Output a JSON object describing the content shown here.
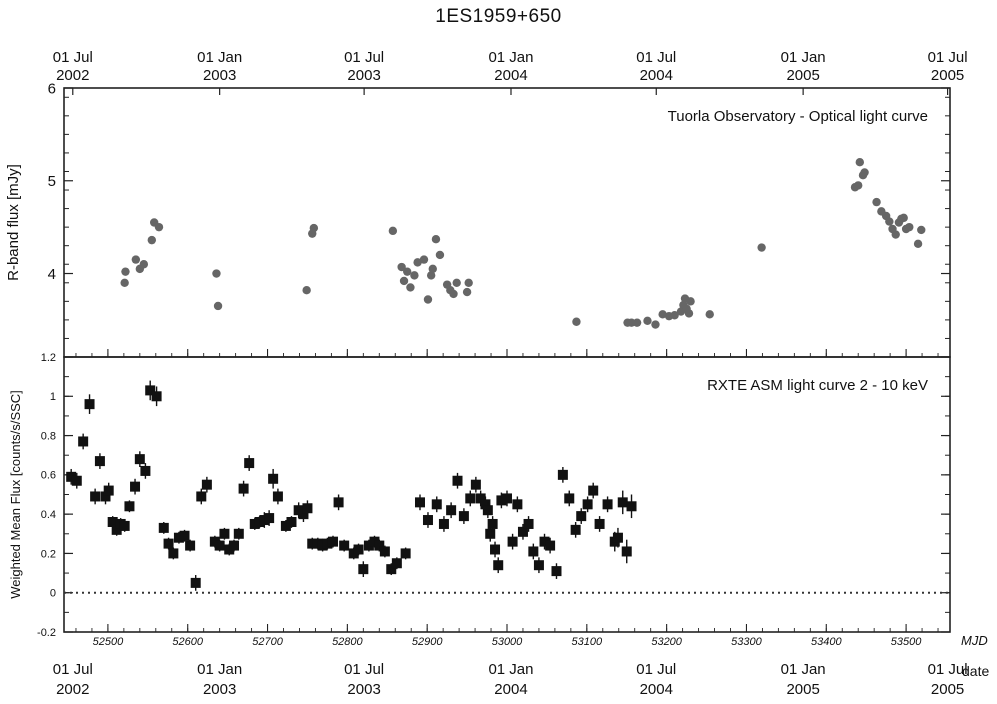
{
  "chart_data": {
    "title": "1ES1959+650",
    "type": "scatter",
    "date_ticks": [
      {
        "mjd": 52456,
        "month": "01 Jul",
        "year": "2002"
      },
      {
        "mjd": 52640,
        "month": "01 Jan",
        "year": "2003"
      },
      {
        "mjd": 52821,
        "month": "01 Jul",
        "year": "2003"
      },
      {
        "mjd": 53005,
        "month": "01 Jan",
        "year": "2004"
      },
      {
        "mjd": 53187,
        "month": "01 Jul",
        "year": "2004"
      },
      {
        "mjd": 53371,
        "month": "01 Jan",
        "year": "2005"
      },
      {
        "mjd": 53552,
        "month": "01 Jul",
        "year": "2005"
      }
    ],
    "bottom_axis": {
      "xlabel": "MJD",
      "date_label": "date",
      "ticks": [
        52500,
        52600,
        52700,
        52800,
        52900,
        53000,
        53100,
        53200,
        53300,
        53400,
        53500
      ]
    },
    "xlim": [
      52445,
      53555
    ],
    "panels": [
      {
        "id": "optical",
        "annotation": "Tuorla Observatory - Optical light curve",
        "ylabel": "R-band flux [mJy]",
        "ylim": [
          3.1,
          6.0
        ],
        "yticks": [
          "4",
          "5",
          "6"
        ],
        "yticks_val": [
          4,
          5,
          6
        ],
        "marker": "circle",
        "points": [
          {
            "x": 52521,
            "y": 3.9
          },
          {
            "x": 52522,
            "y": 4.02
          },
          {
            "x": 52535,
            "y": 4.15
          },
          {
            "x": 52540,
            "y": 4.05
          },
          {
            "x": 52545,
            "y": 4.1
          },
          {
            "x": 52555,
            "y": 4.36
          },
          {
            "x": 52558,
            "y": 4.55
          },
          {
            "x": 52564,
            "y": 4.5
          },
          {
            "x": 52636,
            "y": 4.0
          },
          {
            "x": 52638,
            "y": 3.65
          },
          {
            "x": 52749,
            "y": 3.82
          },
          {
            "x": 52756,
            "y": 4.43
          },
          {
            "x": 52758,
            "y": 4.49
          },
          {
            "x": 52857,
            "y": 4.46
          },
          {
            "x": 52868,
            "y": 4.07
          },
          {
            "x": 52871,
            "y": 3.92
          },
          {
            "x": 52875,
            "y": 4.02
          },
          {
            "x": 52879,
            "y": 3.85
          },
          {
            "x": 52884,
            "y": 3.98
          },
          {
            "x": 52888,
            "y": 4.12
          },
          {
            "x": 52896,
            "y": 4.15
          },
          {
            "x": 52901,
            "y": 3.72
          },
          {
            "x": 52905,
            "y": 3.98
          },
          {
            "x": 52907,
            "y": 4.05
          },
          {
            "x": 52911,
            "y": 4.37
          },
          {
            "x": 52916,
            "y": 4.2
          },
          {
            "x": 52925,
            "y": 3.88
          },
          {
            "x": 52929,
            "y": 3.82
          },
          {
            "x": 52933,
            "y": 3.78
          },
          {
            "x": 52937,
            "y": 3.9
          },
          {
            "x": 52950,
            "y": 3.8
          },
          {
            "x": 52952,
            "y": 3.9
          },
          {
            "x": 53087,
            "y": 3.48
          },
          {
            "x": 53151,
            "y": 3.47
          },
          {
            "x": 53156,
            "y": 3.47
          },
          {
            "x": 53163,
            "y": 3.47
          },
          {
            "x": 53176,
            "y": 3.49
          },
          {
            "x": 53186,
            "y": 3.45
          },
          {
            "x": 53195,
            "y": 3.56
          },
          {
            "x": 53203,
            "y": 3.54
          },
          {
            "x": 53210,
            "y": 3.55
          },
          {
            "x": 53218,
            "y": 3.59
          },
          {
            "x": 53221,
            "y": 3.66
          },
          {
            "x": 53223,
            "y": 3.73
          },
          {
            "x": 53225,
            "y": 3.62
          },
          {
            "x": 53228,
            "y": 3.57
          },
          {
            "x": 53230,
            "y": 3.7
          },
          {
            "x": 53254,
            "y": 3.56
          },
          {
            "x": 53319,
            "y": 4.28
          },
          {
            "x": 53436,
            "y": 4.93
          },
          {
            "x": 53440,
            "y": 4.95
          },
          {
            "x": 53442,
            "y": 5.2
          },
          {
            "x": 53446,
            "y": 5.06
          },
          {
            "x": 53448,
            "y": 5.09
          },
          {
            "x": 53463,
            "y": 4.77
          },
          {
            "x": 53469,
            "y": 4.67
          },
          {
            "x": 53475,
            "y": 4.62
          },
          {
            "x": 53479,
            "y": 4.56
          },
          {
            "x": 53483,
            "y": 4.48
          },
          {
            "x": 53487,
            "y": 4.42
          },
          {
            "x": 53491,
            "y": 4.55
          },
          {
            "x": 53494,
            "y": 4.59
          },
          {
            "x": 53497,
            "y": 4.6
          },
          {
            "x": 53500,
            "y": 4.48
          },
          {
            "x": 53504,
            "y": 4.5
          },
          {
            "x": 53515,
            "y": 4.32
          },
          {
            "x": 53519,
            "y": 4.47
          }
        ]
      },
      {
        "id": "xray",
        "annotation": "RXTE ASM light curve 2 - 10 keV",
        "ylabel": "Weighted Mean Flux [counts/s/SSC]",
        "ylim": [
          -0.2,
          1.2
        ],
        "yticks": [
          "-0.2",
          "0",
          "0.2",
          "0.4",
          "0.6",
          "0.8",
          "1",
          "1.2"
        ],
        "yticks_val": [
          -0.2,
          0,
          0.2,
          0.4,
          0.6,
          0.8,
          1,
          1.2
        ],
        "zero_line": true,
        "marker": "square",
        "points": [
          {
            "x": 52454,
            "y": 0.59,
            "err": 0.04
          },
          {
            "x": 52461,
            "y": 0.57,
            "err": 0.04
          },
          {
            "x": 52469,
            "y": 0.77,
            "err": 0.04
          },
          {
            "x": 52477,
            "y": 0.96,
            "err": 0.05
          },
          {
            "x": 52484,
            "y": 0.49,
            "err": 0.04
          },
          {
            "x": 52490,
            "y": 0.67,
            "err": 0.04
          },
          {
            "x": 52497,
            "y": 0.49,
            "err": 0.04
          },
          {
            "x": 52501,
            "y": 0.52,
            "err": 0.04
          },
          {
            "x": 52506,
            "y": 0.36,
            "err": 0.03
          },
          {
            "x": 52511,
            "y": 0.32,
            "err": 0.03
          },
          {
            "x": 52516,
            "y": 0.35,
            "err": 0.03
          },
          {
            "x": 52521,
            "y": 0.34,
            "err": 0.03
          },
          {
            "x": 52527,
            "y": 0.44,
            "err": 0.03
          },
          {
            "x": 52534,
            "y": 0.54,
            "err": 0.04
          },
          {
            "x": 52540,
            "y": 0.68,
            "err": 0.04
          },
          {
            "x": 52547,
            "y": 0.62,
            "err": 0.04
          },
          {
            "x": 52553,
            "y": 1.03,
            "err": 0.05
          },
          {
            "x": 52561,
            "y": 1.0,
            "err": 0.05
          },
          {
            "x": 52570,
            "y": 0.33,
            "err": 0.03
          },
          {
            "x": 52576,
            "y": 0.25,
            "err": 0.03
          },
          {
            "x": 52582,
            "y": 0.2,
            "err": 0.03
          },
          {
            "x": 52589,
            "y": 0.28,
            "err": 0.03
          },
          {
            "x": 52596,
            "y": 0.29,
            "err": 0.03
          },
          {
            "x": 52603,
            "y": 0.24,
            "err": 0.03
          },
          {
            "x": 52610,
            "y": 0.05,
            "err": 0.04
          },
          {
            "x": 52617,
            "y": 0.49,
            "err": 0.04
          },
          {
            "x": 52624,
            "y": 0.55,
            "err": 0.04
          },
          {
            "x": 52634,
            "y": 0.26,
            "err": 0.03
          },
          {
            "x": 52640,
            "y": 0.24,
            "err": 0.03
          },
          {
            "x": 52646,
            "y": 0.3,
            "err": 0.03
          },
          {
            "x": 52652,
            "y": 0.22,
            "err": 0.03
          },
          {
            "x": 52658,
            "y": 0.24,
            "err": 0.03
          },
          {
            "x": 52664,
            "y": 0.3,
            "err": 0.03
          },
          {
            "x": 52670,
            "y": 0.53,
            "err": 0.04
          },
          {
            "x": 52677,
            "y": 0.66,
            "err": 0.04
          },
          {
            "x": 52684,
            "y": 0.35,
            "err": 0.03
          },
          {
            "x": 52690,
            "y": 0.36,
            "err": 0.03
          },
          {
            "x": 52696,
            "y": 0.37,
            "err": 0.04
          },
          {
            "x": 52702,
            "y": 0.38,
            "err": 0.04
          },
          {
            "x": 52707,
            "y": 0.58,
            "err": 0.05
          },
          {
            "x": 52713,
            "y": 0.49,
            "err": 0.04
          },
          {
            "x": 52723,
            "y": 0.34,
            "err": 0.03
          },
          {
            "x": 52730,
            "y": 0.36,
            "err": 0.03
          },
          {
            "x": 52739,
            "y": 0.42,
            "err": 0.04
          },
          {
            "x": 52745,
            "y": 0.4,
            "err": 0.04
          },
          {
            "x": 52750,
            "y": 0.43,
            "err": 0.04
          },
          {
            "x": 52756,
            "y": 0.25,
            "err": 0.03
          },
          {
            "x": 52763,
            "y": 0.25,
            "err": 0.03
          },
          {
            "x": 52769,
            "y": 0.24,
            "err": 0.03
          },
          {
            "x": 52775,
            "y": 0.25,
            "err": 0.03
          },
          {
            "x": 52782,
            "y": 0.26,
            "err": 0.03
          },
          {
            "x": 52789,
            "y": 0.46,
            "err": 0.04
          },
          {
            "x": 52796,
            "y": 0.24,
            "err": 0.03
          },
          {
            "x": 52808,
            "y": 0.2,
            "err": 0.03
          },
          {
            "x": 52814,
            "y": 0.22,
            "err": 0.03
          },
          {
            "x": 52820,
            "y": 0.12,
            "err": 0.04
          },
          {
            "x": 52827,
            "y": 0.24,
            "err": 0.03
          },
          {
            "x": 52834,
            "y": 0.26,
            "err": 0.03
          },
          {
            "x": 52840,
            "y": 0.24,
            "err": 0.03
          },
          {
            "x": 52847,
            "y": 0.21,
            "err": 0.03
          },
          {
            "x": 52855,
            "y": 0.12,
            "err": 0.03
          },
          {
            "x": 52862,
            "y": 0.15,
            "err": 0.03
          },
          {
            "x": 52873,
            "y": 0.2,
            "err": 0.03
          },
          {
            "x": 52891,
            "y": 0.46,
            "err": 0.04
          },
          {
            "x": 52901,
            "y": 0.37,
            "err": 0.04
          },
          {
            "x": 52912,
            "y": 0.45,
            "err": 0.04
          },
          {
            "x": 52921,
            "y": 0.35,
            "err": 0.04
          },
          {
            "x": 52930,
            "y": 0.42,
            "err": 0.04
          },
          {
            "x": 52938,
            "y": 0.57,
            "err": 0.04
          },
          {
            "x": 52946,
            "y": 0.39,
            "err": 0.04
          },
          {
            "x": 52954,
            "y": 0.48,
            "err": 0.04
          },
          {
            "x": 52961,
            "y": 0.55,
            "err": 0.04
          },
          {
            "x": 52967,
            "y": 0.48,
            "err": 0.04
          },
          {
            "x": 52973,
            "y": 0.45,
            "err": 0.04
          },
          {
            "x": 52976,
            "y": 0.42,
            "err": 0.04
          },
          {
            "x": 52979,
            "y": 0.3,
            "err": 0.04
          },
          {
            "x": 52982,
            "y": 0.35,
            "err": 0.04
          },
          {
            "x": 52985,
            "y": 0.22,
            "err": 0.04
          },
          {
            "x": 52989,
            "y": 0.14,
            "err": 0.04
          },
          {
            "x": 52993,
            "y": 0.47,
            "err": 0.04
          },
          {
            "x": 53000,
            "y": 0.48,
            "err": 0.04
          },
          {
            "x": 53007,
            "y": 0.26,
            "err": 0.04
          },
          {
            "x": 53013,
            "y": 0.45,
            "err": 0.04
          },
          {
            "x": 53020,
            "y": 0.31,
            "err": 0.04
          },
          {
            "x": 53027,
            "y": 0.35,
            "err": 0.04
          },
          {
            "x": 53033,
            "y": 0.21,
            "err": 0.04
          },
          {
            "x": 53040,
            "y": 0.14,
            "err": 0.04
          },
          {
            "x": 53047,
            "y": 0.26,
            "err": 0.04
          },
          {
            "x": 53054,
            "y": 0.24,
            "err": 0.04
          },
          {
            "x": 53062,
            "y": 0.11,
            "err": 0.04
          },
          {
            "x": 53070,
            "y": 0.6,
            "err": 0.04
          },
          {
            "x": 53078,
            "y": 0.48,
            "err": 0.04
          },
          {
            "x": 53086,
            "y": 0.32,
            "err": 0.04
          },
          {
            "x": 53093,
            "y": 0.39,
            "err": 0.04
          },
          {
            "x": 53101,
            "y": 0.45,
            "err": 0.04
          },
          {
            "x": 53108,
            "y": 0.52,
            "err": 0.04
          },
          {
            "x": 53116,
            "y": 0.35,
            "err": 0.04
          },
          {
            "x": 53126,
            "y": 0.45,
            "err": 0.04
          },
          {
            "x": 53135,
            "y": 0.26,
            "err": 0.05
          },
          {
            "x": 53139,
            "y": 0.28,
            "err": 0.05
          },
          {
            "x": 53145,
            "y": 0.46,
            "err": 0.06
          },
          {
            "x": 53150,
            "y": 0.21,
            "err": 0.06
          },
          {
            "x": 53156,
            "y": 0.44,
            "err": 0.06
          }
        ]
      }
    ]
  }
}
